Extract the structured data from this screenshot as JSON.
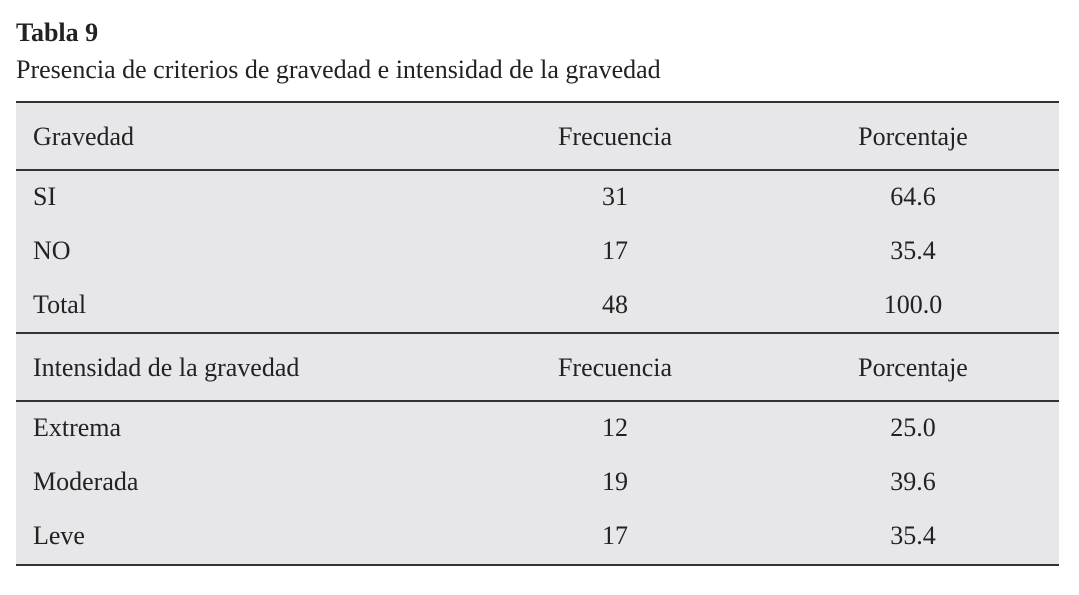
{
  "header": {
    "title": "Tabla 9",
    "subtitle": "Presencia de criterios de gravedad e intensidad de la gravedad"
  },
  "table": {
    "sections": [
      {
        "header": [
          "Gravedad",
          "Frecuencia",
          "Porcentaje"
        ],
        "rows": [
          [
            "SI",
            "31",
            "64.6"
          ],
          [
            "NO",
            "17",
            "35.4"
          ],
          [
            "Total",
            "48",
            "100.0"
          ]
        ]
      },
      {
        "header": [
          "Intensidad de la gravedad",
          "Frecuencia",
          "Porcentaje"
        ],
        "rows": [
          [
            "Extrema",
            "12",
            "25.0"
          ],
          [
            "Moderada",
            "19",
            "39.6"
          ],
          [
            "Leve",
            "17",
            "35.4"
          ]
        ]
      }
    ]
  }
}
